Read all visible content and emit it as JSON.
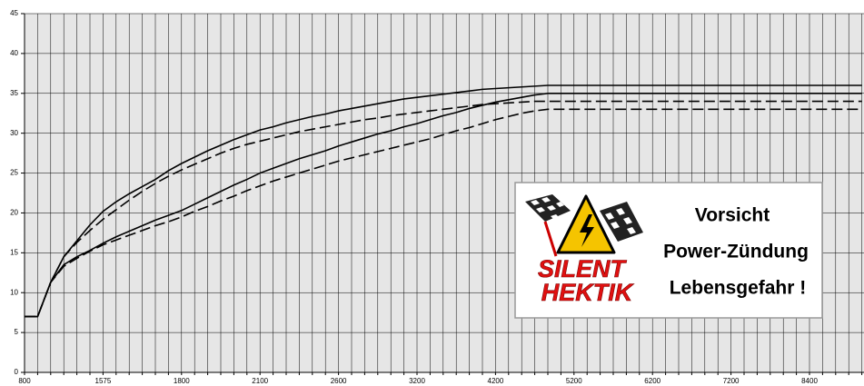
{
  "chart_data": {
    "type": "line",
    "categories": [
      "800",
      null,
      null,
      null,
      null,
      null,
      "1575",
      null,
      null,
      null,
      null,
      null,
      "1800",
      null,
      null,
      null,
      null,
      null,
      "2100",
      null,
      null,
      null,
      null,
      null,
      "2600",
      null,
      null,
      null,
      null,
      null,
      "3200",
      null,
      null,
      null,
      null,
      null,
      "4200",
      null,
      null,
      null,
      null,
      null,
      "5200",
      null,
      null,
      null,
      null,
      null,
      "6200",
      null,
      null,
      null,
      null,
      null,
      "7200",
      null,
      null,
      null,
      null,
      null,
      "8400",
      null,
      null,
      null,
      null
    ],
    "series": [
      {
        "color": "#000000",
        "style": "solid",
        "values": [
          7,
          7,
          11.3,
          14.5,
          16.5,
          18.5,
          20.2,
          21.4,
          22.4,
          23.3,
          24.2,
          25.3,
          26.2,
          27,
          27.8,
          28.5,
          29.2,
          29.8,
          30.4,
          30.8,
          31.3,
          31.7,
          32.1,
          32.4,
          32.8,
          33.1,
          33.4,
          33.7,
          34,
          34.3,
          34.5,
          34.7,
          34.9,
          35.1,
          35.3,
          35.5,
          35.6,
          35.7,
          35.8,
          35.9,
          36,
          36,
          36,
          36,
          36,
          36,
          36,
          36,
          36,
          36,
          36,
          36,
          36,
          36,
          36,
          36,
          36,
          36,
          36,
          36,
          36,
          36,
          36,
          36,
          36
        ]
      },
      {
        "color": "#000000",
        "style": "solid",
        "values": [
          7,
          7,
          11.3,
          13.5,
          14.5,
          15.3,
          16.2,
          17,
          17.7,
          18.4,
          19.1,
          19.7,
          20.3,
          21.1,
          21.9,
          22.7,
          23.5,
          24.2,
          25,
          25.6,
          26.2,
          26.8,
          27.3,
          27.8,
          28.4,
          28.9,
          29.4,
          29.9,
          30.3,
          30.8,
          31.2,
          31.7,
          32.2,
          32.6,
          33.1,
          33.5,
          33.9,
          34.2,
          34.5,
          34.8,
          35,
          35,
          35,
          35,
          35,
          35,
          35,
          35,
          35,
          35,
          35,
          35,
          35,
          35,
          35,
          35,
          35,
          35,
          35,
          35,
          35,
          35,
          35,
          35,
          35
        ]
      },
      {
        "color": "#000000",
        "style": "dashed",
        "values": [
          7,
          7,
          11.3,
          14.5,
          16.3,
          17.8,
          19.2,
          20.4,
          21.6,
          22.7,
          23.7,
          24.6,
          25.4,
          26.1,
          26.8,
          27.5,
          28.1,
          28.6,
          29,
          29.4,
          29.8,
          30.2,
          30.5,
          30.8,
          31.1,
          31.4,
          31.7,
          31.9,
          32.2,
          32.4,
          32.6,
          32.8,
          33,
          33.2,
          33.4,
          33.6,
          33.7,
          33.8,
          33.9,
          34,
          34,
          34,
          34,
          34,
          34,
          34,
          34,
          34,
          34,
          34,
          34,
          34,
          34,
          34,
          34,
          34,
          34,
          34,
          34,
          34,
          34,
          34,
          34,
          34,
          34
        ]
      },
      {
        "color": "#000000",
        "style": "dashed",
        "values": [
          7,
          7,
          11.3,
          13.3,
          14.3,
          15.2,
          16,
          16.6,
          17.2,
          17.8,
          18.4,
          18.9,
          19.5,
          20.2,
          20.8,
          21.5,
          22.1,
          22.8,
          23.4,
          24,
          24.5,
          25,
          25.5,
          26,
          26.5,
          26.9,
          27.3,
          27.7,
          28.1,
          28.5,
          28.9,
          29.3,
          29.8,
          30.3,
          30.7,
          31.2,
          31.7,
          32.1,
          32.5,
          32.8,
          33,
          33,
          33,
          33,
          33,
          33,
          33,
          33,
          33,
          33,
          33,
          33,
          33,
          33,
          33,
          33,
          33,
          33,
          33,
          33,
          33,
          33,
          33,
          33,
          33
        ]
      }
    ],
    "ylim": [
      0,
      45
    ],
    "yticks": [
      0,
      5,
      10,
      15,
      20,
      25,
      30,
      35,
      40,
      45
    ],
    "grid": true
  },
  "logo": {
    "brand_line1": "SILENT",
    "brand_line2": "HEKTIK",
    "warning": [
      "Vorsicht",
      "Power-Zündung",
      "Lebensgefahr !"
    ]
  }
}
